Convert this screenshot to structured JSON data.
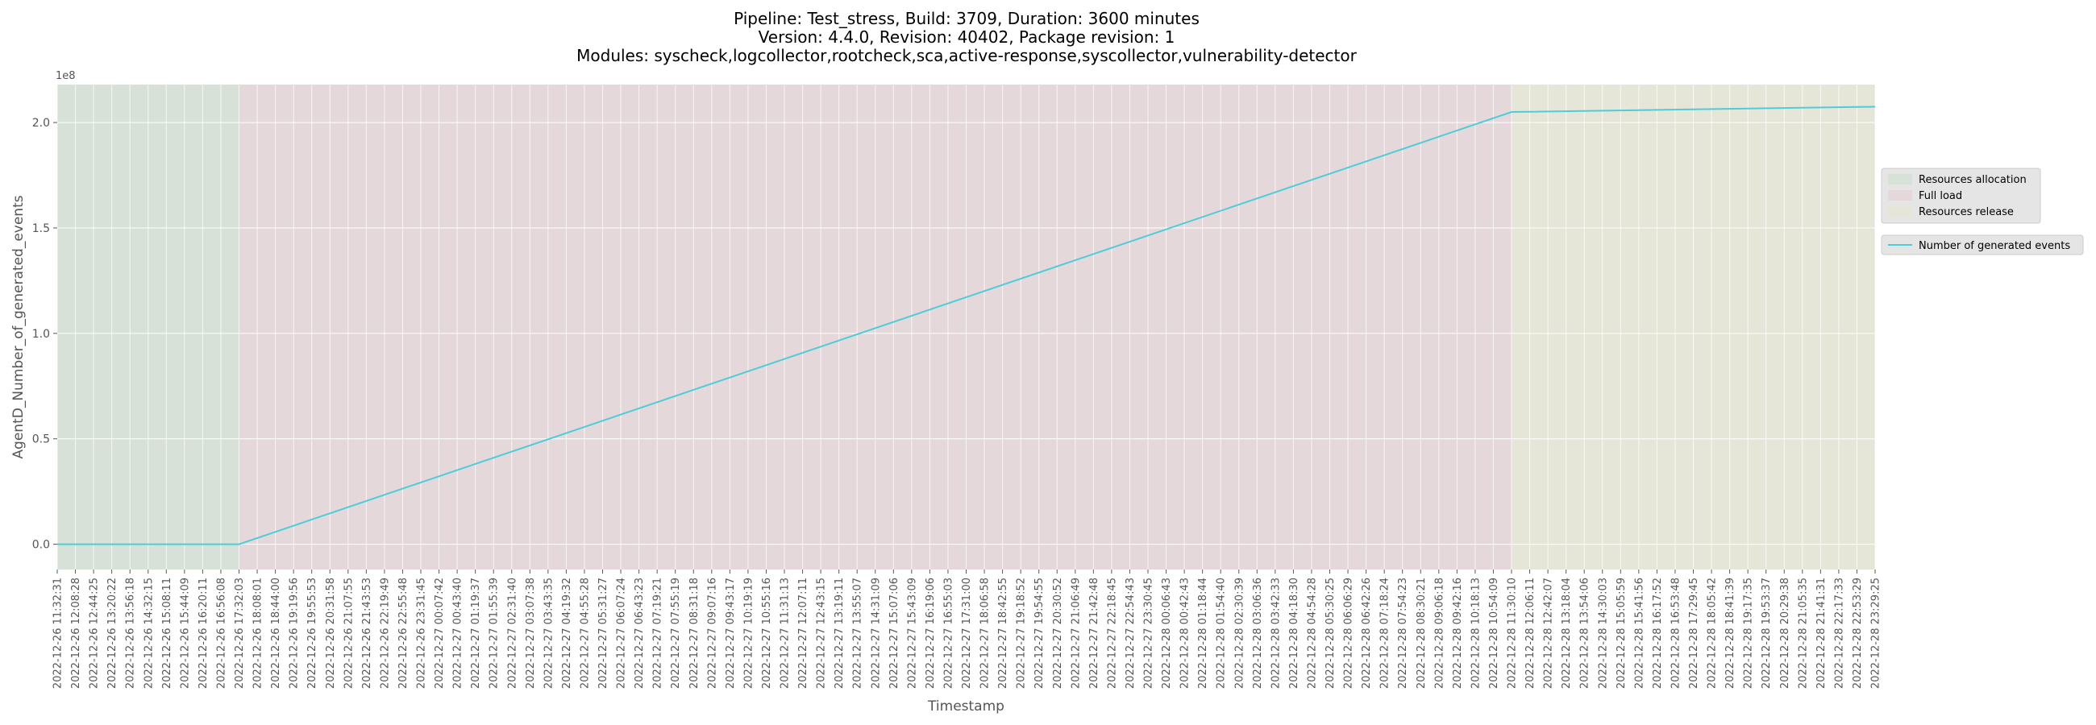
{
  "title_lines": [
    "Pipeline: Test_stress, Build: 3709, Duration: 3600 minutes",
    "Version: 4.4.0, Revision: 40402, Package revision: 1",
    "Modules: syscheck,logcollector,rootcheck,sca,active-response,syscollector,vulnerability-detector"
  ],
  "colors": {
    "line": "#4ecdd9",
    "plot_bg": "#e5e5e5",
    "grid": "#ffffff",
    "phase_allocation": "#d8e1d8",
    "phase_full_load": "#e5d8da",
    "phase_release": "#e5e5d8"
  },
  "chart_data": {
    "type": "line",
    "xlabel": "Timestamp",
    "ylabel": "AgentD_Number_of_generated_events",
    "y_scale_label": "1e8",
    "ylim": [
      -0.12,
      2.18
    ],
    "yticks": [
      0.0,
      0.5,
      1.0,
      1.5,
      2.0
    ],
    "ytick_labels": [
      "0.0",
      "0.5",
      "1.0",
      "1.5",
      "2.0"
    ],
    "grid": true,
    "legend_position": "right",
    "categories": [
      "2022-12-26 11:32:31",
      "2022-12-26 12:08:28",
      "2022-12-26 12:44:25",
      "2022-12-26 13:20:22",
      "2022-12-26 13:56:18",
      "2022-12-26 14:32:15",
      "2022-12-26 15:08:11",
      "2022-12-26 15:44:09",
      "2022-12-26 16:20:11",
      "2022-12-26 16:56:08",
      "2022-12-26 17:32:03",
      "2022-12-26 18:08:01",
      "2022-12-26 18:44:00",
      "2022-12-26 19:19:56",
      "2022-12-26 19:55:53",
      "2022-12-26 20:31:58",
      "2022-12-26 21:07:55",
      "2022-12-26 21:43:53",
      "2022-12-26 22:19:49",
      "2022-12-26 22:55:48",
      "2022-12-26 23:31:45",
      "2022-12-27 00:07:42",
      "2022-12-27 00:43:40",
      "2022-12-27 01:19:37",
      "2022-12-27 01:55:39",
      "2022-12-27 02:31:40",
      "2022-12-27 03:07:38",
      "2022-12-27 03:43:35",
      "2022-12-27 04:19:32",
      "2022-12-27 04:55:28",
      "2022-12-27 05:31:27",
      "2022-12-27 06:07:24",
      "2022-12-27 06:43:23",
      "2022-12-27 07:19:21",
      "2022-12-27 07:55:19",
      "2022-12-27 08:31:18",
      "2022-12-27 09:07:16",
      "2022-12-27 09:43:17",
      "2022-12-27 10:19:19",
      "2022-12-27 10:55:16",
      "2022-12-27 11:31:13",
      "2022-12-27 12:07:11",
      "2022-12-27 12:43:15",
      "2022-12-27 13:19:11",
      "2022-12-27 13:55:07",
      "2022-12-27 14:31:09",
      "2022-12-27 15:07:06",
      "2022-12-27 15:43:09",
      "2022-12-27 16:19:06",
      "2022-12-27 16:55:03",
      "2022-12-27 17:31:00",
      "2022-12-27 18:06:58",
      "2022-12-27 18:42:55",
      "2022-12-27 19:18:52",
      "2022-12-27 19:54:55",
      "2022-12-27 20:30:52",
      "2022-12-27 21:06:49",
      "2022-12-27 21:42:48",
      "2022-12-27 22:18:45",
      "2022-12-27 22:54:43",
      "2022-12-27 23:30:45",
      "2022-12-28 00:06:43",
      "2022-12-28 00:42:43",
      "2022-12-28 01:18:44",
      "2022-12-28 01:54:40",
      "2022-12-28 02:30:39",
      "2022-12-28 03:06:36",
      "2022-12-28 03:42:33",
      "2022-12-28 04:18:30",
      "2022-12-28 04:54:28",
      "2022-12-28 05:30:25",
      "2022-12-28 06:06:29",
      "2022-12-28 06:42:26",
      "2022-12-28 07:18:24",
      "2022-12-28 07:54:23",
      "2022-12-28 08:30:21",
      "2022-12-28 09:06:18",
      "2022-12-28 09:42:16",
      "2022-12-28 10:18:13",
      "2022-12-28 10:54:09",
      "2022-12-28 11:30:10",
      "2022-12-28 12:06:11",
      "2022-12-28 12:42:07",
      "2022-12-28 13:18:04",
      "2022-12-28 13:54:06",
      "2022-12-28 14:30:03",
      "2022-12-28 15:05:59",
      "2022-12-28 15:41:56",
      "2022-12-28 16:17:52",
      "2022-12-28 16:53:48",
      "2022-12-28 17:29:45",
      "2022-12-28 18:05:42",
      "2022-12-28 18:41:39",
      "2022-12-28 19:17:35",
      "2022-12-28 19:53:37",
      "2022-12-28 20:29:38",
      "2022-12-28 21:05:35",
      "2022-12-28 21:41:31",
      "2022-12-28 22:17:33",
      "2022-12-28 22:53:29",
      "2022-12-28 23:29:25"
    ],
    "phases": [
      {
        "name": "Resources allocation",
        "start": "2022-12-26 11:32:31",
        "end": "2022-12-26 17:32:03",
        "color_key": "phase_allocation"
      },
      {
        "name": "Full load",
        "start": "2022-12-26 17:32:03",
        "end": "2022-12-28 11:30:10",
        "color_key": "phase_full_load"
      },
      {
        "name": "Resources release",
        "start": "2022-12-28 11:30:10",
        "end": "2022-12-28 23:29:25",
        "color_key": "phase_release"
      }
    ],
    "series": [
      {
        "name": "Number of generated events",
        "points": [
          {
            "x": "2022-12-26 11:32:31",
            "y": 0.0
          },
          {
            "x": "2022-12-26 17:32:03",
            "y": 0.0
          },
          {
            "x": "2022-12-28 11:30:10",
            "y": 2.05
          },
          {
            "x": "2022-12-28 23:29:25",
            "y": 2.075
          }
        ]
      }
    ]
  }
}
